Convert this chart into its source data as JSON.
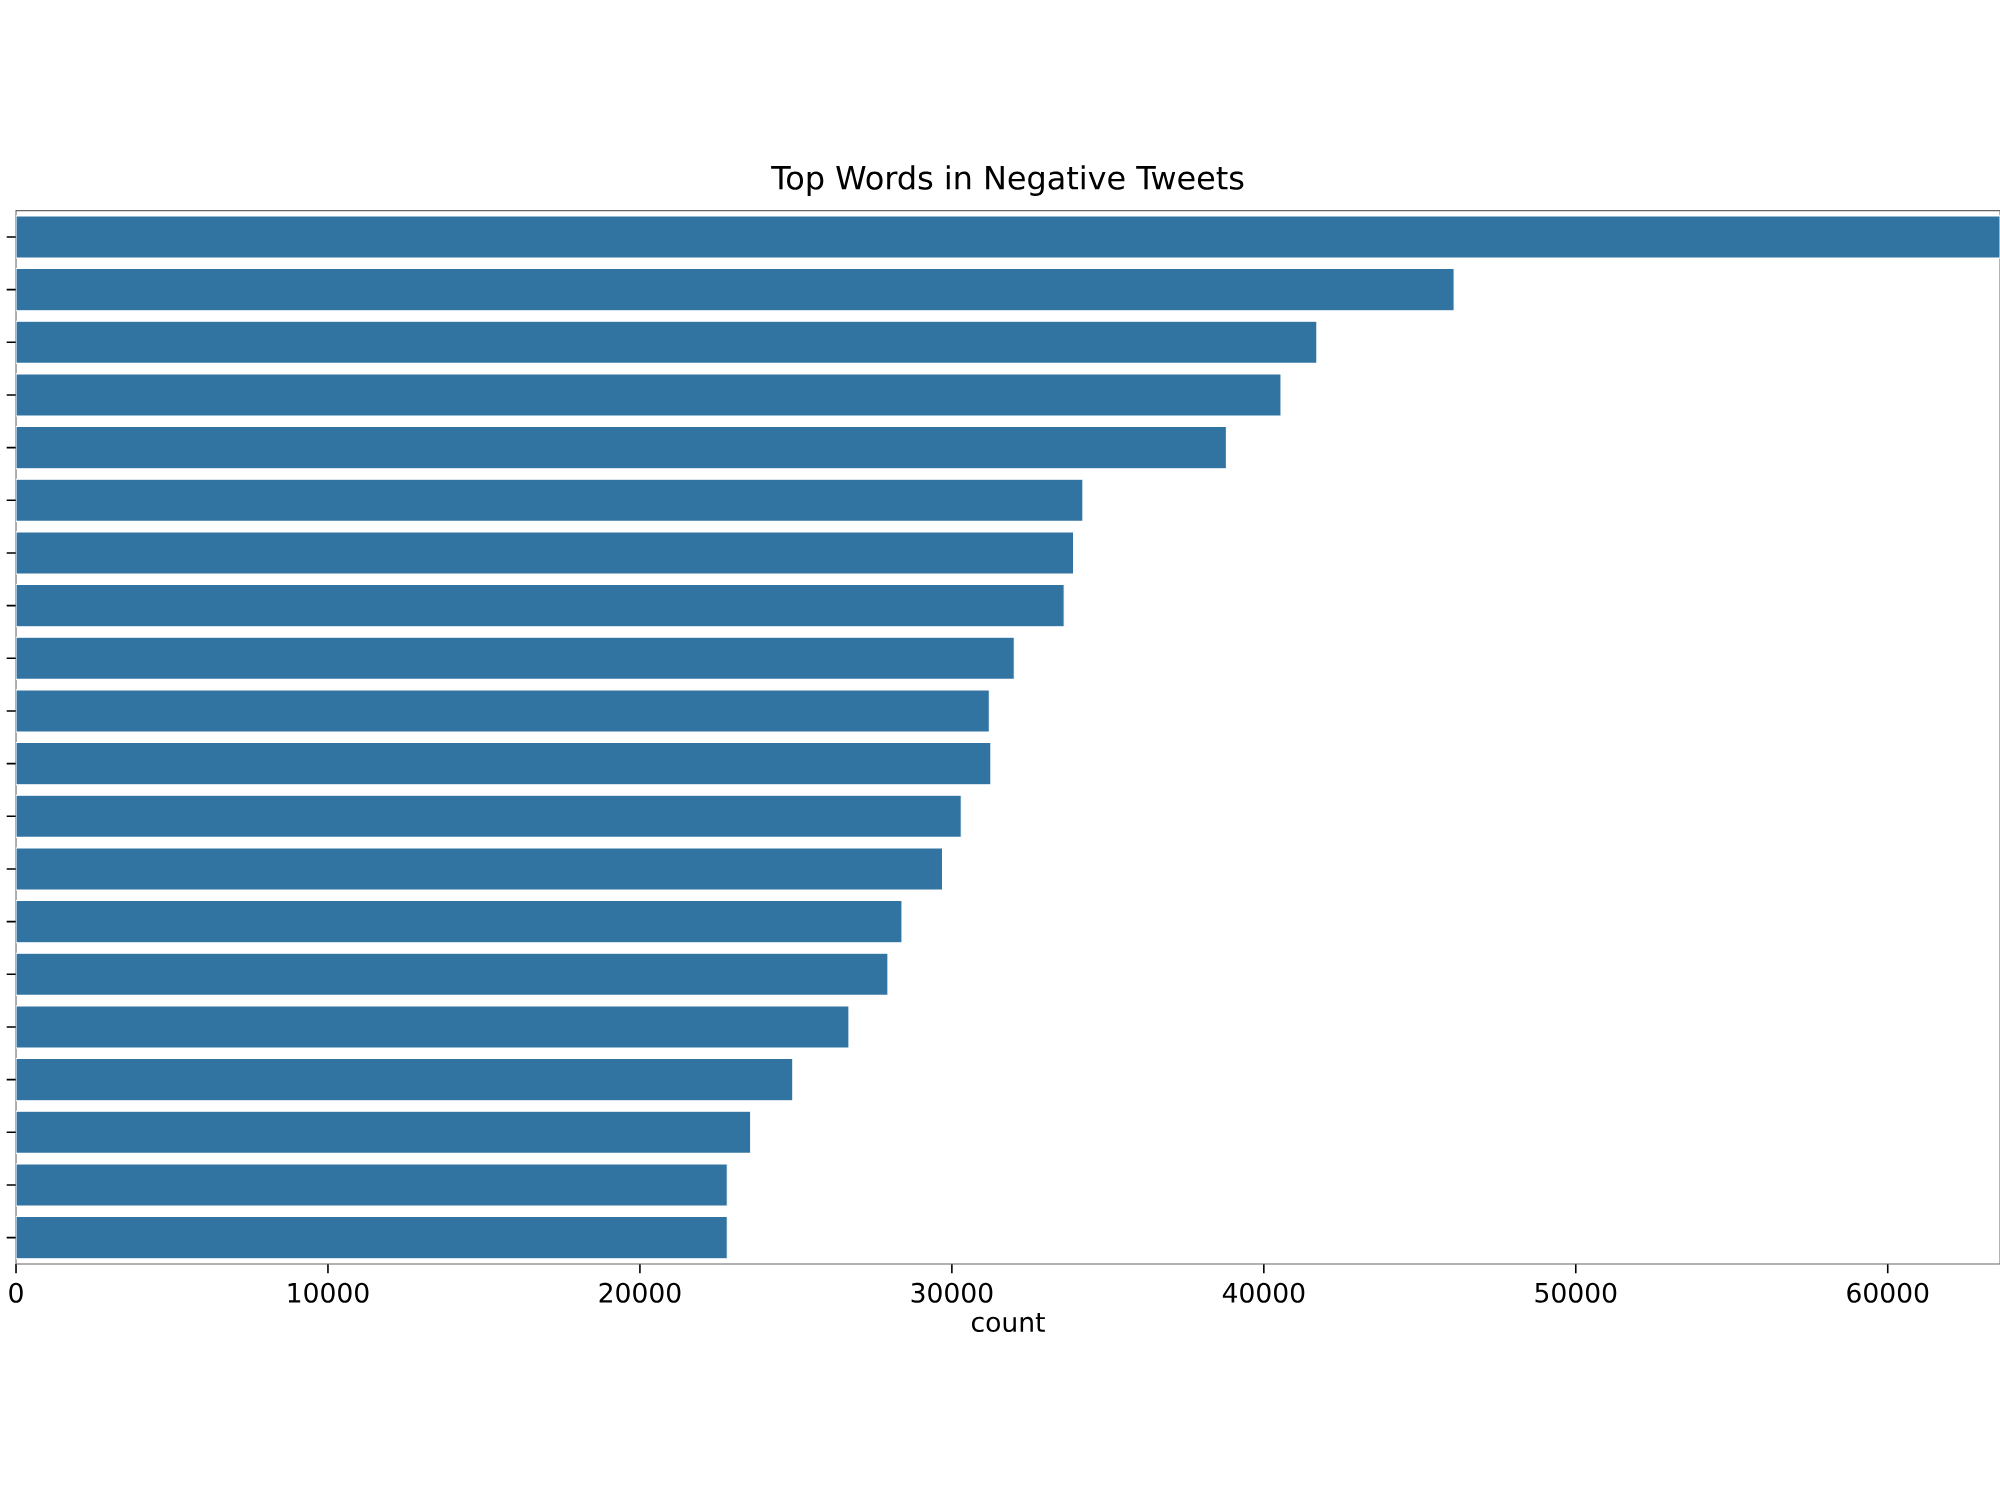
{
  "chart_data": {
    "type": "bar",
    "orientation": "horizontal",
    "title": "Top Words in Negative Tweets",
    "xlabel": "count",
    "categories": [
      null,
      null,
      null,
      null,
      null,
      null,
      null,
      null,
      null,
      null,
      null,
      null,
      null,
      null,
      null,
      null,
      null,
      null,
      null,
      null
    ],
    "values": [
      63600,
      46100,
      41700,
      40550,
      38800,
      34200,
      33900,
      33600,
      32000,
      31200,
      31250,
      30300,
      29700,
      28400,
      27950,
      26700,
      24900,
      23550,
      22800,
      22800
    ],
    "color": "#3274a1",
    "xlim": [
      0,
      63600
    ],
    "xticks": [
      0,
      10000,
      20000,
      30000,
      40000,
      50000,
      60000
    ]
  }
}
